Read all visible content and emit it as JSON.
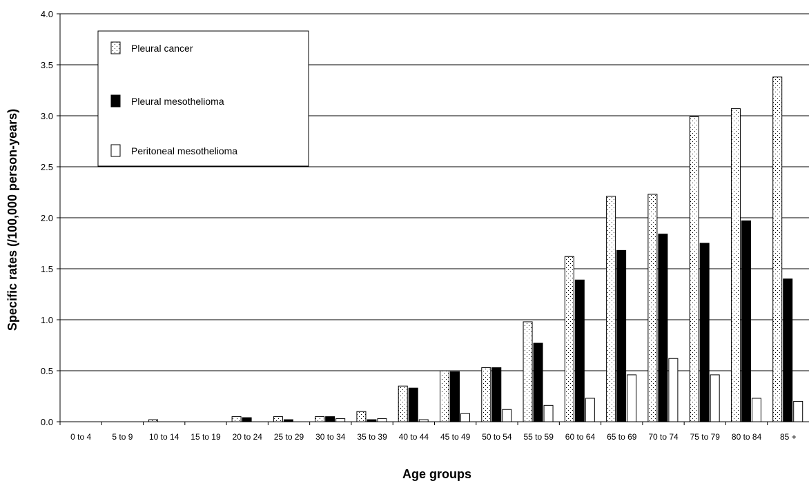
{
  "chart_data": {
    "type": "bar",
    "xlabel": "Age groups",
    "ylabel": "Specific rates (/100,000 person-years)",
    "ylim": [
      0,
      4.0
    ],
    "yticks": [
      "0.0",
      "0.5",
      "1.0",
      "1.5",
      "2.0",
      "2.5",
      "3.0",
      "3.5",
      "4.0"
    ],
    "grid": true,
    "legend_position": "top-left",
    "categories": [
      "0 to 4",
      "5 to 9",
      "10 to 14",
      "15 to 19",
      "20 to 24",
      "25 to 29",
      "30 to 34",
      "35 to 39",
      "40 to 44",
      "45 to 49",
      "50 to 54",
      "55 to 59",
      "60 to 64",
      "65 to 69",
      "70 to 74",
      "75 to 79",
      "80 to 84",
      "85 +"
    ],
    "series": [
      {
        "name": "Pleural cancer",
        "fill": "dotted",
        "values": [
          0,
          0,
          0.02,
          0,
          0.05,
          0.05,
          0.05,
          0.1,
          0.35,
          0.5,
          0.53,
          0.98,
          1.62,
          2.21,
          2.23,
          2.99,
          3.07,
          3.38
        ]
      },
      {
        "name": "Pleural mesothelioma",
        "fill": "#000000",
        "values": [
          0,
          0,
          0,
          0,
          0.04,
          0.02,
          0.05,
          0.02,
          0.33,
          0.49,
          0.53,
          0.77,
          1.39,
          1.68,
          1.84,
          1.75,
          1.97,
          1.4
        ]
      },
      {
        "name": "Peritoneal mesothelioma",
        "fill": "#ffffff",
        "values": [
          0,
          0,
          0,
          0,
          0,
          0,
          0.03,
          0.03,
          0.02,
          0.08,
          0.12,
          0.16,
          0.23,
          0.46,
          0.62,
          0.46,
          0.23,
          0.2
        ]
      }
    ]
  }
}
